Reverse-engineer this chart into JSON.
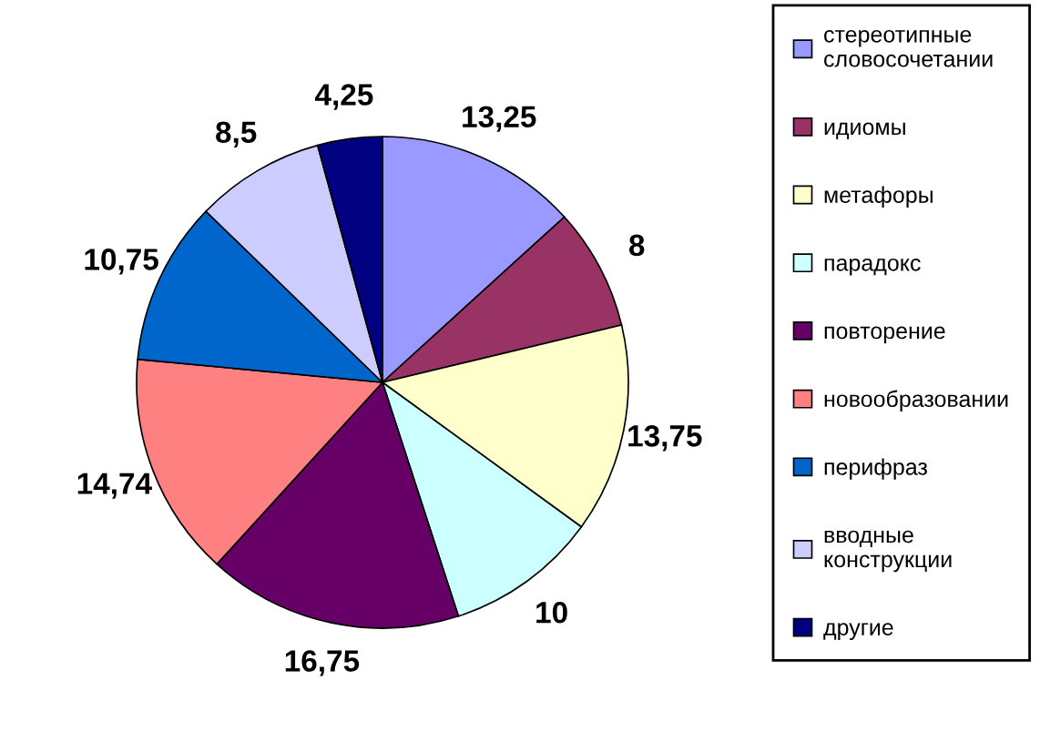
{
  "chart_data": {
    "type": "pie",
    "categories": [
      "стереотипные словосочетании",
      "идиомы",
      "метафоры",
      "парадокс",
      "повторение",
      "новообразовании",
      "перифраз",
      "вводные конструкции",
      "другие"
    ],
    "values": [
      13.25,
      8,
      13.75,
      10,
      16.75,
      14.74,
      10.75,
      8.5,
      4.25
    ],
    "value_labels": [
      "13,25",
      "8",
      "13,75",
      "10",
      "16,75",
      "14,74",
      "10,75",
      "8,5",
      "4,25"
    ],
    "colors": [
      "#9999ff",
      "#993366",
      "#ffffcc",
      "#ccffff",
      "#660066",
      "#ff8080",
      "#0066cc",
      "#ccccff",
      "#000080"
    ],
    "legend": "right"
  }
}
